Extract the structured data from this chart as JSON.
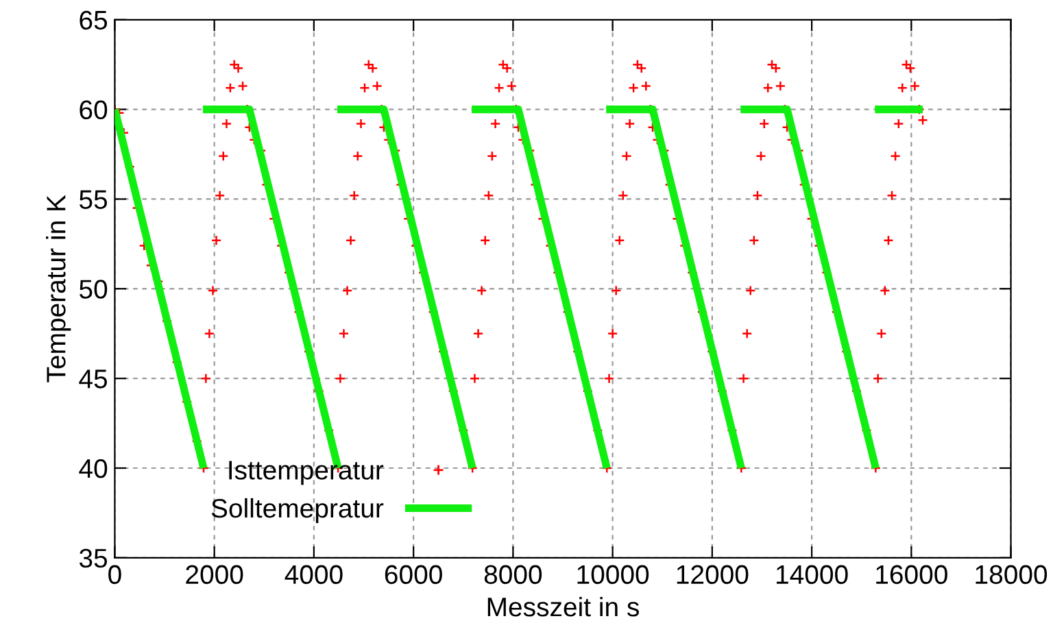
{
  "chart_data": {
    "type": "scatter",
    "xlabel": "Messzeit in s",
    "ylabel": "Temperatur in K",
    "xlim": [
      0,
      18000
    ],
    "xticks": [
      0,
      2000,
      4000,
      6000,
      8000,
      10000,
      12000,
      14000,
      16000,
      18000
    ],
    "ylim": [
      35,
      65
    ],
    "yticks": [
      35,
      40,
      45,
      50,
      55,
      60,
      65
    ],
    "grid": true,
    "legend": "bottom left",
    "series": [
      {
        "name": "Isttemperatur",
        "marker": "cross",
        "color": "#ff0000",
        "x": [
          0,
          90,
          180,
          300,
          450,
          590,
          730,
          870,
          1050,
          1250,
          1450,
          1650,
          1785,
          1830,
          1900,
          1970,
          2040,
          2110,
          2180,
          2245,
          2320,
          2400,
          2480,
          2570,
          2660,
          2705,
          2800,
          2935,
          3050,
          3200,
          3350,
          3500,
          3700,
          3900,
          4100,
          4300,
          4485,
          4530,
          4600,
          4670,
          4740,
          4810,
          4880,
          4945,
          5020,
          5100,
          5180,
          5270,
          5360,
          5405,
          5500,
          5635,
          5750,
          5900,
          6050,
          6200,
          6400,
          6600,
          6800,
          7000,
          7185,
          7230,
          7300,
          7370,
          7440,
          7510,
          7580,
          7645,
          7720,
          7800,
          7880,
          7970,
          8060,
          8105,
          8200,
          8335,
          8450,
          8600,
          8750,
          8900,
          9100,
          9300,
          9500,
          9700,
          9885,
          9930,
          10000,
          10070,
          10140,
          10210,
          10280,
          10345,
          10420,
          10500,
          10580,
          10670,
          10760,
          10805,
          10900,
          11035,
          11150,
          11300,
          11450,
          11600,
          11800,
          12000,
          12200,
          12400,
          12585,
          12630,
          12700,
          12770,
          12840,
          12910,
          12980,
          13045,
          13120,
          13200,
          13280,
          13370,
          13460,
          13505,
          13600,
          13735,
          13850,
          14000,
          14150,
          14300,
          14500,
          14700,
          14900,
          15100,
          15285,
          15330,
          15400,
          15470,
          15540,
          15610,
          15680,
          15745,
          15820,
          15900,
          15980,
          16070,
          16160,
          16230
        ],
        "values": [
          60,
          59.8,
          58.7,
          56.8,
          54.5,
          52.4,
          51.3,
          50.4,
          48.2,
          45.9,
          43.7,
          41.5,
          40,
          45,
          47.5,
          49.9,
          52.7,
          55.2,
          57.4,
          59.2,
          61.2,
          62.5,
          62.3,
          61.3,
          60,
          59,
          58.3,
          57.7,
          55.8,
          53.9,
          52.4,
          50.9,
          48.7,
          46.5,
          44.3,
          42.1,
          40,
          45,
          47.5,
          49.9,
          52.7,
          55.2,
          57.4,
          59.2,
          61.2,
          62.5,
          62.3,
          61.3,
          60,
          59,
          58.3,
          57.7,
          55.8,
          53.9,
          52.4,
          50.9,
          48.7,
          46.5,
          44.3,
          42.1,
          40,
          45,
          47.5,
          49.9,
          52.7,
          55.2,
          57.4,
          59.2,
          61.2,
          62.5,
          62.3,
          61.3,
          60,
          59,
          58.3,
          57.7,
          55.8,
          53.9,
          52.4,
          50.9,
          48.7,
          46.5,
          44.3,
          42.1,
          40,
          45,
          47.5,
          49.9,
          52.7,
          55.2,
          57.4,
          59.2,
          61.2,
          62.5,
          62.3,
          61.3,
          60,
          59,
          58.3,
          57.7,
          55.8,
          53.9,
          52.4,
          50.9,
          48.7,
          46.5,
          44.3,
          42.1,
          40,
          45,
          47.5,
          49.9,
          52.7,
          55.2,
          57.4,
          59.2,
          61.2,
          62.5,
          62.3,
          61.3,
          60,
          59,
          58.3,
          57.7,
          55.8,
          53.9,
          52.4,
          50.9,
          48.7,
          46.5,
          44.3,
          42.1,
          40,
          45,
          47.5,
          49.9,
          52.7,
          55.2,
          57.4,
          59.2,
          61.2,
          62.5,
          62.3,
          61.3,
          60,
          59.4
        ]
      },
      {
        "name": "Solltemepratur",
        "type": "line",
        "color": "#11ee11",
        "x": [
          0,
          1785
        ],
        "values": [
          60,
          40
        ]
      },
      {
        "type": "line",
        "color": "#11ee11",
        "x": [
          1770,
          2705,
          4485
        ],
        "values": [
          60,
          60,
          40
        ]
      },
      {
        "type": "line",
        "color": "#11ee11",
        "x": [
          4470,
          5405,
          7185
        ],
        "values": [
          60,
          60,
          40
        ]
      },
      {
        "type": "line",
        "color": "#11ee11",
        "x": [
          7170,
          8105,
          9885
        ],
        "values": [
          60,
          60,
          40
        ]
      },
      {
        "type": "line",
        "color": "#11ee11",
        "x": [
          9870,
          10805,
          12585
        ],
        "values": [
          60,
          60,
          40
        ]
      },
      {
        "type": "line",
        "color": "#11ee11",
        "x": [
          12570,
          13505,
          15285
        ],
        "values": [
          60,
          60,
          40
        ]
      },
      {
        "type": "line",
        "color": "#11ee11",
        "x": [
          15270,
          16230
        ],
        "values": [
          60,
          60
        ]
      }
    ]
  }
}
